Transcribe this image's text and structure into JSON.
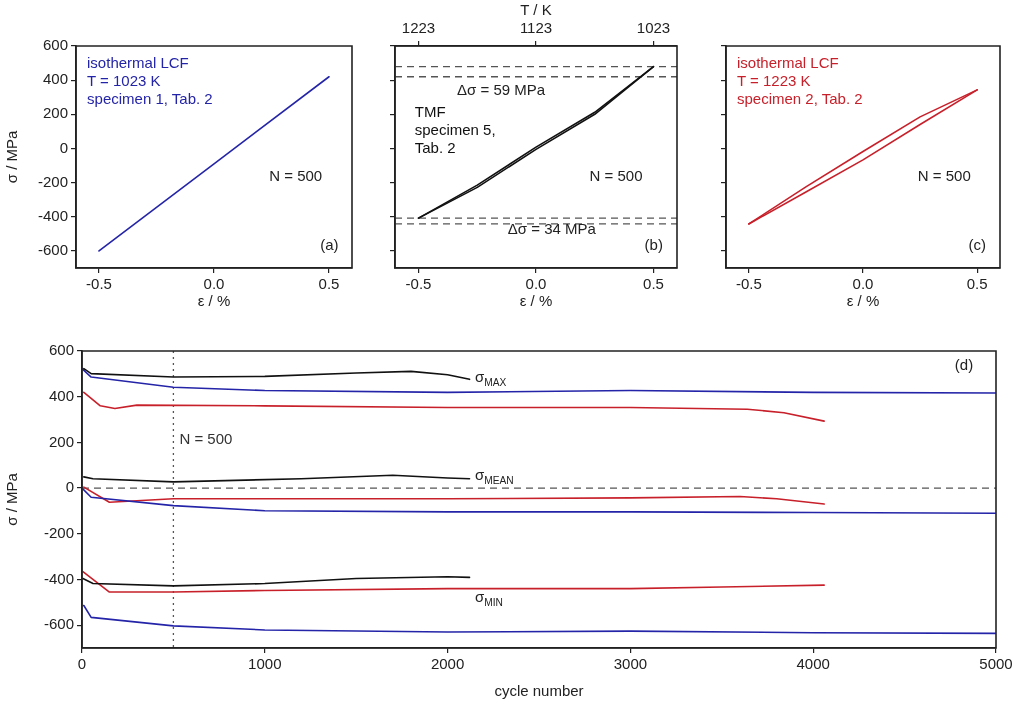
{
  "chart_data": [
    {
      "type": "line",
      "xlabel": "ε / %",
      "ylabel": "σ / MPa",
      "xlim": [
        -0.6,
        0.6
      ],
      "xticks": [
        {
          "value": -0.5,
          "label": "-0.5"
        },
        {
          "value": 0,
          "label": "0.0"
        },
        {
          "value": 0.5,
          "label": "0.5"
        }
      ],
      "ylim": [
        -700,
        600
      ],
      "yticks": [
        -600,
        -400,
        -200,
        0,
        200,
        400,
        600
      ],
      "grid": false,
      "legend": false,
      "series": [
        {
          "color": "#2424a8",
          "x": [
            -0.5,
            0,
            0.5
          ],
          "values": [
            -600,
            -90,
            420
          ]
        }
      ],
      "annotations": [
        "isothermal LCF\nT = 1023 K\nspecimen 1, Tab. 2",
        "N = 500",
        "(a)"
      ]
    },
    {
      "type": "line",
      "xlabel": "ε / %",
      "x2label": "T / K",
      "xlim": [
        -0.6,
        0.6
      ],
      "xticks": [
        {
          "value": -0.5,
          "label": "-0.5"
        },
        {
          "value": 0,
          "label": "0.0"
        },
        {
          "value": 0.5,
          "label": "0.5"
        }
      ],
      "x2lim": [
        1243,
        1003
      ],
      "x2ticks": [
        1223,
        1123,
        1023
      ],
      "ylim": [
        -700,
        600
      ],
      "yticks": [
        -600,
        -400,
        -200,
        0,
        200,
        400,
        600
      ],
      "tick_labels": "x",
      "grid": false,
      "legend": false,
      "series": [
        {
          "color": "#111111",
          "x": [
            -0.5,
            -0.25,
            0,
            0.25,
            0.5
          ],
          "values": [
            -408,
            -228,
            -5,
            200,
            479
          ]
        },
        {
          "color": "#111111",
          "x": [
            -0.5,
            -0.25,
            0,
            0.25,
            0.5
          ],
          "values": [
            -408,
            -215,
            8,
            212,
            479
          ]
        }
      ],
      "ref_lines": [
        {
          "axis": "y",
          "value": 479,
          "line_style": "dashed",
          "color": "#555555"
        },
        {
          "axis": "y",
          "value": 420,
          "line_style": "dashed",
          "color": "#555555"
        },
        {
          "axis": "y",
          "value": -408,
          "line_style": "dashed",
          "color": "#555555"
        },
        {
          "axis": "y",
          "value": -442,
          "line_style": "dashed",
          "color": "#555555"
        }
      ],
      "annotations": [
        "TMF\nspecimen 5,\nTab. 2",
        "Δσ = 59 MPa",
        "N = 500",
        "Δσ = 34 MPa",
        "(b)"
      ]
    },
    {
      "type": "line",
      "xlabel": "ε / %",
      "xlim": [
        -0.6,
        0.6
      ],
      "xticks": [
        {
          "value": -0.5,
          "label": "-0.5"
        },
        {
          "value": 0,
          "label": "0.0"
        },
        {
          "value": 0.5,
          "label": "0.5"
        }
      ],
      "ylim": [
        -700,
        600
      ],
      "yticks": [
        -600,
        -400,
        -200,
        0,
        200,
        400,
        600
      ],
      "tick_labels": "x",
      "grid": false,
      "legend": false,
      "series": [
        {
          "color": "#c8202a",
          "x": [
            -0.5,
            -0.25,
            0,
            0.25,
            0.5
          ],
          "values": [
            -442,
            -255,
            -67,
            140,
            343
          ]
        },
        {
          "color": "#c8202a",
          "x": [
            -0.5,
            -0.25,
            0,
            0.25,
            0.5
          ],
          "values": [
            -442,
            -225,
            -18,
            185,
            343
          ]
        }
      ],
      "annotations": [
        "isothermal LCF\nT = 1223 K\nspecimen 2, Tab. 2",
        "N = 500",
        "(c)"
      ]
    },
    {
      "type": "line",
      "xlabel": "cycle number",
      "ylabel": "σ / MPa",
      "xlim": [
        0,
        5000
      ],
      "xticks": [
        0,
        1000,
        2000,
        3000,
        4000,
        5000
      ],
      "ylim": [
        -700,
        600
      ],
      "yticks": [
        -600,
        -400,
        -200,
        0,
        200,
        400,
        600
      ],
      "grid": false,
      "legend": false,
      "series": [
        {
          "color": "#111111",
          "x": [
            10,
            50,
            500,
            1000,
            1500,
            1800,
            2000,
            2120
          ],
          "values": [
            523,
            501,
            486,
            489,
            504,
            511,
            496,
            476
          ]
        },
        {
          "color": "#2424a8",
          "x": [
            0,
            50,
            500,
            1000,
            2000,
            3000,
            4000,
            5000
          ],
          "values": [
            523,
            486,
            441,
            427,
            419,
            427,
            419,
            416
          ]
        },
        {
          "color": "#c8202a",
          "x": [
            10,
            100,
            180,
            300,
            1000,
            2000,
            3000,
            3640,
            3840,
            4060
          ],
          "values": [
            419,
            360,
            348,
            363,
            360,
            353,
            353,
            345,
            330,
            293
          ]
        },
        {
          "color": "#111111",
          "x": [
            10,
            60,
            500,
            1200,
            1700,
            2000,
            2120
          ],
          "values": [
            49,
            41,
            27,
            41,
            56,
            44,
            41
          ]
        },
        {
          "color": "#2424a8",
          "x": [
            0,
            50,
            500,
            1000,
            2000,
            3000,
            4000,
            5000
          ],
          "values": [
            0,
            -40,
            -77,
            -99,
            -104,
            -104,
            -107,
            -110
          ]
        },
        {
          "color": "#c8202a",
          "x": [
            10,
            150,
            500,
            2000,
            3000,
            3600,
            3800,
            4060
          ],
          "values": [
            4,
            -62,
            -47,
            -47,
            -43,
            -37,
            -47,
            -70
          ]
        },
        {
          "color": "#111111",
          "x": [
            5,
            60,
            500,
            1000,
            1500,
            2000,
            2120
          ],
          "values": [
            -396,
            -418,
            -428,
            -418,
            -396,
            -388,
            -391
          ]
        },
        {
          "color": "#c8202a",
          "x": [
            5,
            150,
            500,
            1000,
            2000,
            3000,
            3500,
            4060
          ],
          "values": [
            -366,
            -455,
            -455,
            -448,
            -440,
            -440,
            -433,
            -425
          ]
        },
        {
          "color": "#2424a8",
          "x": [
            10,
            50,
            500,
            1000,
            2000,
            3000,
            4000,
            5000
          ],
          "values": [
            -514,
            -566,
            -603,
            -621,
            -630,
            -626,
            -633,
            -636
          ]
        }
      ],
      "ref_lines": [
        {
          "axis": "y",
          "value": 0,
          "line_style": "dashed",
          "color": "#555555"
        },
        {
          "axis": "x",
          "value": 500,
          "label": "N = 500",
          "line_style": "dotted",
          "color": "#555555"
        }
      ],
      "annotations": [
        "σ$_{MAX}$",
        "σ$_{MEAN}$",
        "σ$_{MIN}$",
        "(d)"
      ]
    }
  ]
}
